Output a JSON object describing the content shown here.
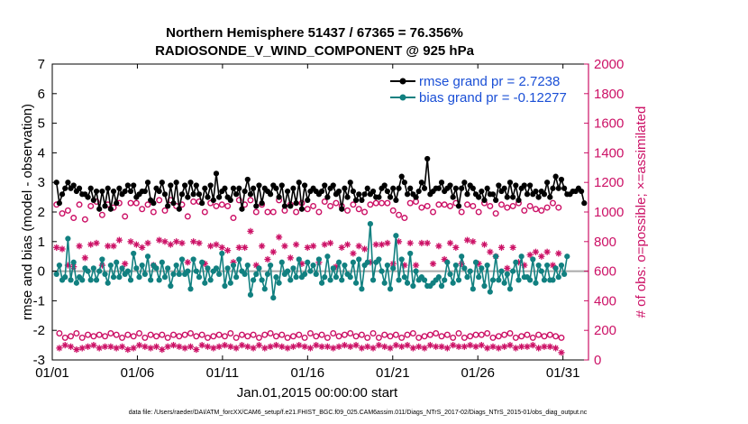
{
  "chart_data": {
    "type": "line",
    "title": "Northern Hemisphere 51437 / 67365 = 76.356%",
    "subtitle": "RADIOSONDE_V_WIND_COMPONENT @ 925 hPa",
    "xlabel": "Jan.01,2015 00:00:00 start",
    "ylabel": "rmse and bias (model - observation)",
    "ylabel_right": "# of obs: o=possible; ×=assimilated",
    "x_tick_labels": [
      "01/01",
      "01/06",
      "01/11",
      "01/16",
      "01/21",
      "01/26",
      "01/31"
    ],
    "y_ticks": [
      "-3",
      "-2",
      "-1",
      "0",
      "1",
      "2",
      "3",
      "4",
      "5",
      "6",
      "7"
    ],
    "y_ticks_right": [
      "0",
      "200",
      "400",
      "600",
      "800",
      "1000",
      "1200",
      "1400",
      "1600",
      "1800",
      "2000"
    ],
    "xlim": [
      0,
      31.5
    ],
    "ylim": [
      -3,
      7
    ],
    "ylim_right": [
      0,
      2000
    ],
    "legend_position": "top-right",
    "grid": false,
    "zero_line": 0,
    "colors": {
      "rmse": "#000000",
      "bias": "#118080",
      "obs_counts": "#cc1166",
      "legend_text": "#1a4fd6",
      "zero_line": "#aaaaaa"
    },
    "series": [
      {
        "name": "rmse grand pr = 2.7238",
        "axis": "left",
        "marker": "filled-circle-line",
        "values": [
          3.0,
          2.3,
          2.6,
          2.8,
          3.0,
          2.8,
          2.9,
          2.7,
          2.8,
          2.6,
          2.6,
          2.5,
          2.8,
          2.4,
          2.7,
          2.1,
          2.7,
          2.2,
          2.8,
          2.1,
          2.7,
          2.3,
          2.8,
          2.6,
          2.7,
          2.9,
          2.7,
          2.9,
          2.5,
          2.6,
          2.7,
          2.7,
          3.0,
          2.4,
          2.3,
          2.8,
          2.7,
          3.0,
          2.6,
          2.2,
          2.9,
          2.3,
          3.0,
          2.1,
          2.6,
          2.9,
          2.5,
          3.0,
          2.6,
          2.9,
          2.6,
          2.3,
          2.8,
          2.5,
          2.9,
          2.4,
          3.3,
          2.5,
          2.7,
          2.8,
          2.5,
          2.4,
          2.8,
          2.6,
          2.8,
          2.1,
          2.7,
          3.1,
          2.6,
          2.8,
          2.2,
          2.9,
          2.3,
          2.8,
          2.7,
          2.6,
          2.9,
          2.8,
          2.5,
          2.9,
          2.2,
          2.7,
          2.2,
          2.8,
          2.3,
          3.0,
          2.1,
          2.9,
          2.4,
          2.7,
          2.8,
          2.7,
          2.6,
          2.7,
          2.9,
          2.5,
          2.8,
          2.9,
          2.6,
          2.7,
          2.1,
          2.8,
          2.5,
          3.0,
          2.7,
          2.4,
          2.6,
          2.4,
          2.6,
          2.8,
          2.6,
          2.7,
          2.5,
          2.5,
          2.8,
          2.9,
          2.7,
          2.5,
          2.8,
          2.4,
          2.8,
          3.2,
          3.0,
          2.6,
          2.8,
          2.6,
          2.5,
          2.7,
          3.0,
          2.8,
          3.8,
          2.6,
          2.7,
          2.8,
          2.8,
          3.0,
          2.7,
          2.8,
          2.9,
          2.5,
          2.8,
          2.2,
          2.8,
          3.0,
          2.6,
          2.9,
          2.8,
          2.6,
          2.5,
          2.7,
          2.4,
          2.8,
          2.6,
          2.6,
          2.4,
          2.9,
          2.7,
          2.8,
          2.5,
          3.0,
          2.5,
          2.9,
          2.4,
          2.8,
          2.9,
          2.6,
          2.9,
          2.6,
          2.7,
          2.5,
          2.7,
          2.6,
          3.0,
          2.5,
          2.8,
          3.2,
          2.8,
          3.1,
          2.8,
          2.6,
          2.6,
          2.7,
          2.7,
          2.8,
          2.7,
          2.3
        ]
      },
      {
        "name": "bias grand pr = -0.12277",
        "axis": "left",
        "marker": "filled-circle-line",
        "values": [
          -0.1,
          0.2,
          -0.3,
          -0.2,
          1.1,
          -0.3,
          0.3,
          -0.4,
          -0.2,
          -0.3,
          0.1,
          0.0,
          -0.3,
          0.1,
          -0.3,
          0.0,
          0.4,
          -0.1,
          -0.4,
          0.2,
          -0.2,
          0.3,
          -0.2,
          0.1,
          -0.1,
          0.0,
          -0.3,
          0.6,
          0.1,
          -0.2,
          0.2,
          -0.1,
          0.5,
          -0.3,
          0.2,
          0.1,
          -0.3,
          0.3,
          -0.2,
          0.1,
          -0.5,
          -0.1,
          0.2,
          -0.1,
          0.4,
          -0.1,
          0.0,
          -0.6,
          0.4,
          0.0,
          -0.2,
          0.3,
          -0.4,
          0.1,
          -0.3,
          0.0,
          0.1,
          -0.1,
          0.6,
          -0.5,
          0.1,
          -0.4,
          0.2,
          -0.2,
          0.4,
          0.0,
          -0.1,
          0.2,
          -0.8,
          -0.3,
          -0.1,
          0.1,
          -0.3,
          -0.6,
          -0.1,
          0.2,
          -0.9,
          -0.2,
          -0.4,
          0.3,
          -0.1,
          0.0,
          -0.3,
          0.1,
          -0.2,
          0.4,
          -0.2,
          -0.1,
          0.3,
          0.0,
          0.2,
          -0.1,
          0.4,
          -0.4,
          -0.2,
          0.5,
          -0.3,
          0.1,
          -0.2,
          0.3,
          -0.3,
          0.2,
          -0.1,
          -0.2,
          0.3,
          -0.4,
          0.4,
          -0.6,
          0.2,
          0.3,
          1.6,
          -0.3,
          0.3,
          0.4,
          0.0,
          -0.4,
          0.2,
          -0.6,
          0.1,
          1.2,
          -0.3,
          0.4,
          -0.2,
          -0.4,
          0.6,
          -0.5,
          0.0,
          -0.3,
          -0.2,
          -0.3,
          -0.5,
          -0.5,
          -0.4,
          -0.3,
          -0.2,
          -0.5,
          -0.3,
          0.3,
          -0.1,
          -0.4,
          0.2,
          -0.3,
          0.5,
          0.1,
          -0.2,
          0.0,
          -0.6,
          0.3,
          -0.2,
          0.1,
          -0.5,
          0.2,
          -0.7,
          -0.3,
          0.5,
          -0.3,
          0.0,
          -0.4,
          -0.1,
          -0.6,
          0.0,
          0.3,
          -0.3,
          0.5,
          -0.2,
          -0.2,
          -0.3,
          0.4,
          -0.4,
          0.2,
          0.0,
          -0.3,
          0.2,
          -0.3,
          -0.3,
          0.1,
          -0.2,
          0.2,
          -0.1,
          0.5
        ]
      },
      {
        "name": "possible obs",
        "axis": "right",
        "marker": "open-circle",
        "values": [
          1050,
          180,
          990,
          150,
          1010,
          160,
          960,
          180,
          1050,
          150,
          950,
          170,
          1040,
          160,
          1070,
          170,
          980,
          160,
          1050,
          180,
          1030,
          170,
          1060,
          150,
          970,
          170,
          1060,
          160,
          1060,
          180,
          1020,
          150,
          1050,
          170,
          1000,
          160,
          1080,
          170,
          1010,
          150,
          1080,
          170,
          1040,
          160,
          1050,
          170,
          970,
          180,
          1070,
          160,
          1070,
          170,
          1000,
          150,
          1060,
          160,
          1040,
          170,
          1050,
          160,
          1040,
          180,
          960,
          150,
          1080,
          170,
          1050,
          160,
          1080,
          170,
          1000,
          150,
          1050,
          170,
          1000,
          180,
          1000,
          160,
          1080,
          170,
          1010,
          150,
          1050,
          160,
          1000,
          170,
          1060,
          150,
          1020,
          180,
          1040,
          160,
          1000,
          170,
          1070,
          150,
          1040,
          180,
          1060,
          160,
          1040,
          170,
          1010,
          180,
          1050,
          160,
          1020,
          170,
          1000,
          150,
          1050,
          180,
          1060,
          150,
          1060,
          170,
          1060,
          160,
          1010,
          170,
          980,
          150,
          960,
          170,
          1060,
          180,
          1070,
          150,
          1030,
          160,
          1040,
          170,
          1000,
          180,
          1050,
          160,
          1050,
          170,
          1040,
          150,
          1060,
          180,
          1000,
          150,
          1050,
          160,
          1040,
          170,
          1000,
          170,
          1060,
          180,
          1040,
          150,
          990,
          160,
          1050,
          170,
          1030,
          180,
          1040,
          150,
          1060,
          160,
          1010,
          170,
          1040,
          150,
          1020,
          170,
          1010,
          160,
          1030,
          170,
          1060,
          160,
          1030,
          150
        ]
      },
      {
        "name": "assimilated obs",
        "axis": "right",
        "marker": "asterisk",
        "values": [
          760,
          80,
          750,
          100,
          640,
          90,
          630,
          70,
          770,
          80,
          690,
          90,
          780,
          100,
          790,
          80,
          640,
          90,
          770,
          90,
          770,
          80,
          810,
          90,
          650,
          70,
          800,
          80,
          780,
          100,
          760,
          90,
          790,
          80,
          640,
          90,
          810,
          70,
          800,
          90,
          780,
          100,
          800,
          90,
          790,
          80,
          660,
          90,
          800,
          70,
          790,
          100,
          650,
          90,
          770,
          80,
          780,
          90,
          760,
          100,
          740,
          90,
          660,
          80,
          760,
          100,
          760,
          90,
          870,
          80,
          640,
          100,
          770,
          80,
          680,
          90,
          730,
          100,
          830,
          90,
          770,
          80,
          690,
          90,
          780,
          100,
          650,
          90,
          760,
          80,
          770,
          100,
          660,
          90,
          780,
          90,
          790,
          80,
          630,
          90,
          760,
          100,
          780,
          90,
          720,
          100,
          770,
          80,
          750,
          90,
          660,
          80,
          780,
          100,
          780,
          90,
          790,
          80,
          650,
          100,
          800,
          90,
          640,
          100,
          790,
          80,
          640,
          90,
          790,
          80,
          790,
          100,
          650,
          90,
          770,
          90,
          680,
          80,
          790,
          100,
          760,
          90,
          650,
          90,
          810,
          100,
          800,
          90,
          650,
          100,
          780,
          80,
          730,
          90,
          700,
          80,
          760,
          90,
          620,
          100,
          760,
          80,
          660,
          90,
          640,
          90,
          710,
          100,
          730,
          80,
          700,
          90,
          730,
          90,
          640,
          80,
          720,
          50
        ]
      }
    ]
  },
  "footnote": "data file: /Users/raeder/DAI/ATM_forcXX/CAM6_setup/f.e21.FHIST_BGC.f09_025.CAM6assim.011/Diags_NTrS_2017-02/Diags_NTrS_2015-01/obs_diag_output.nc"
}
